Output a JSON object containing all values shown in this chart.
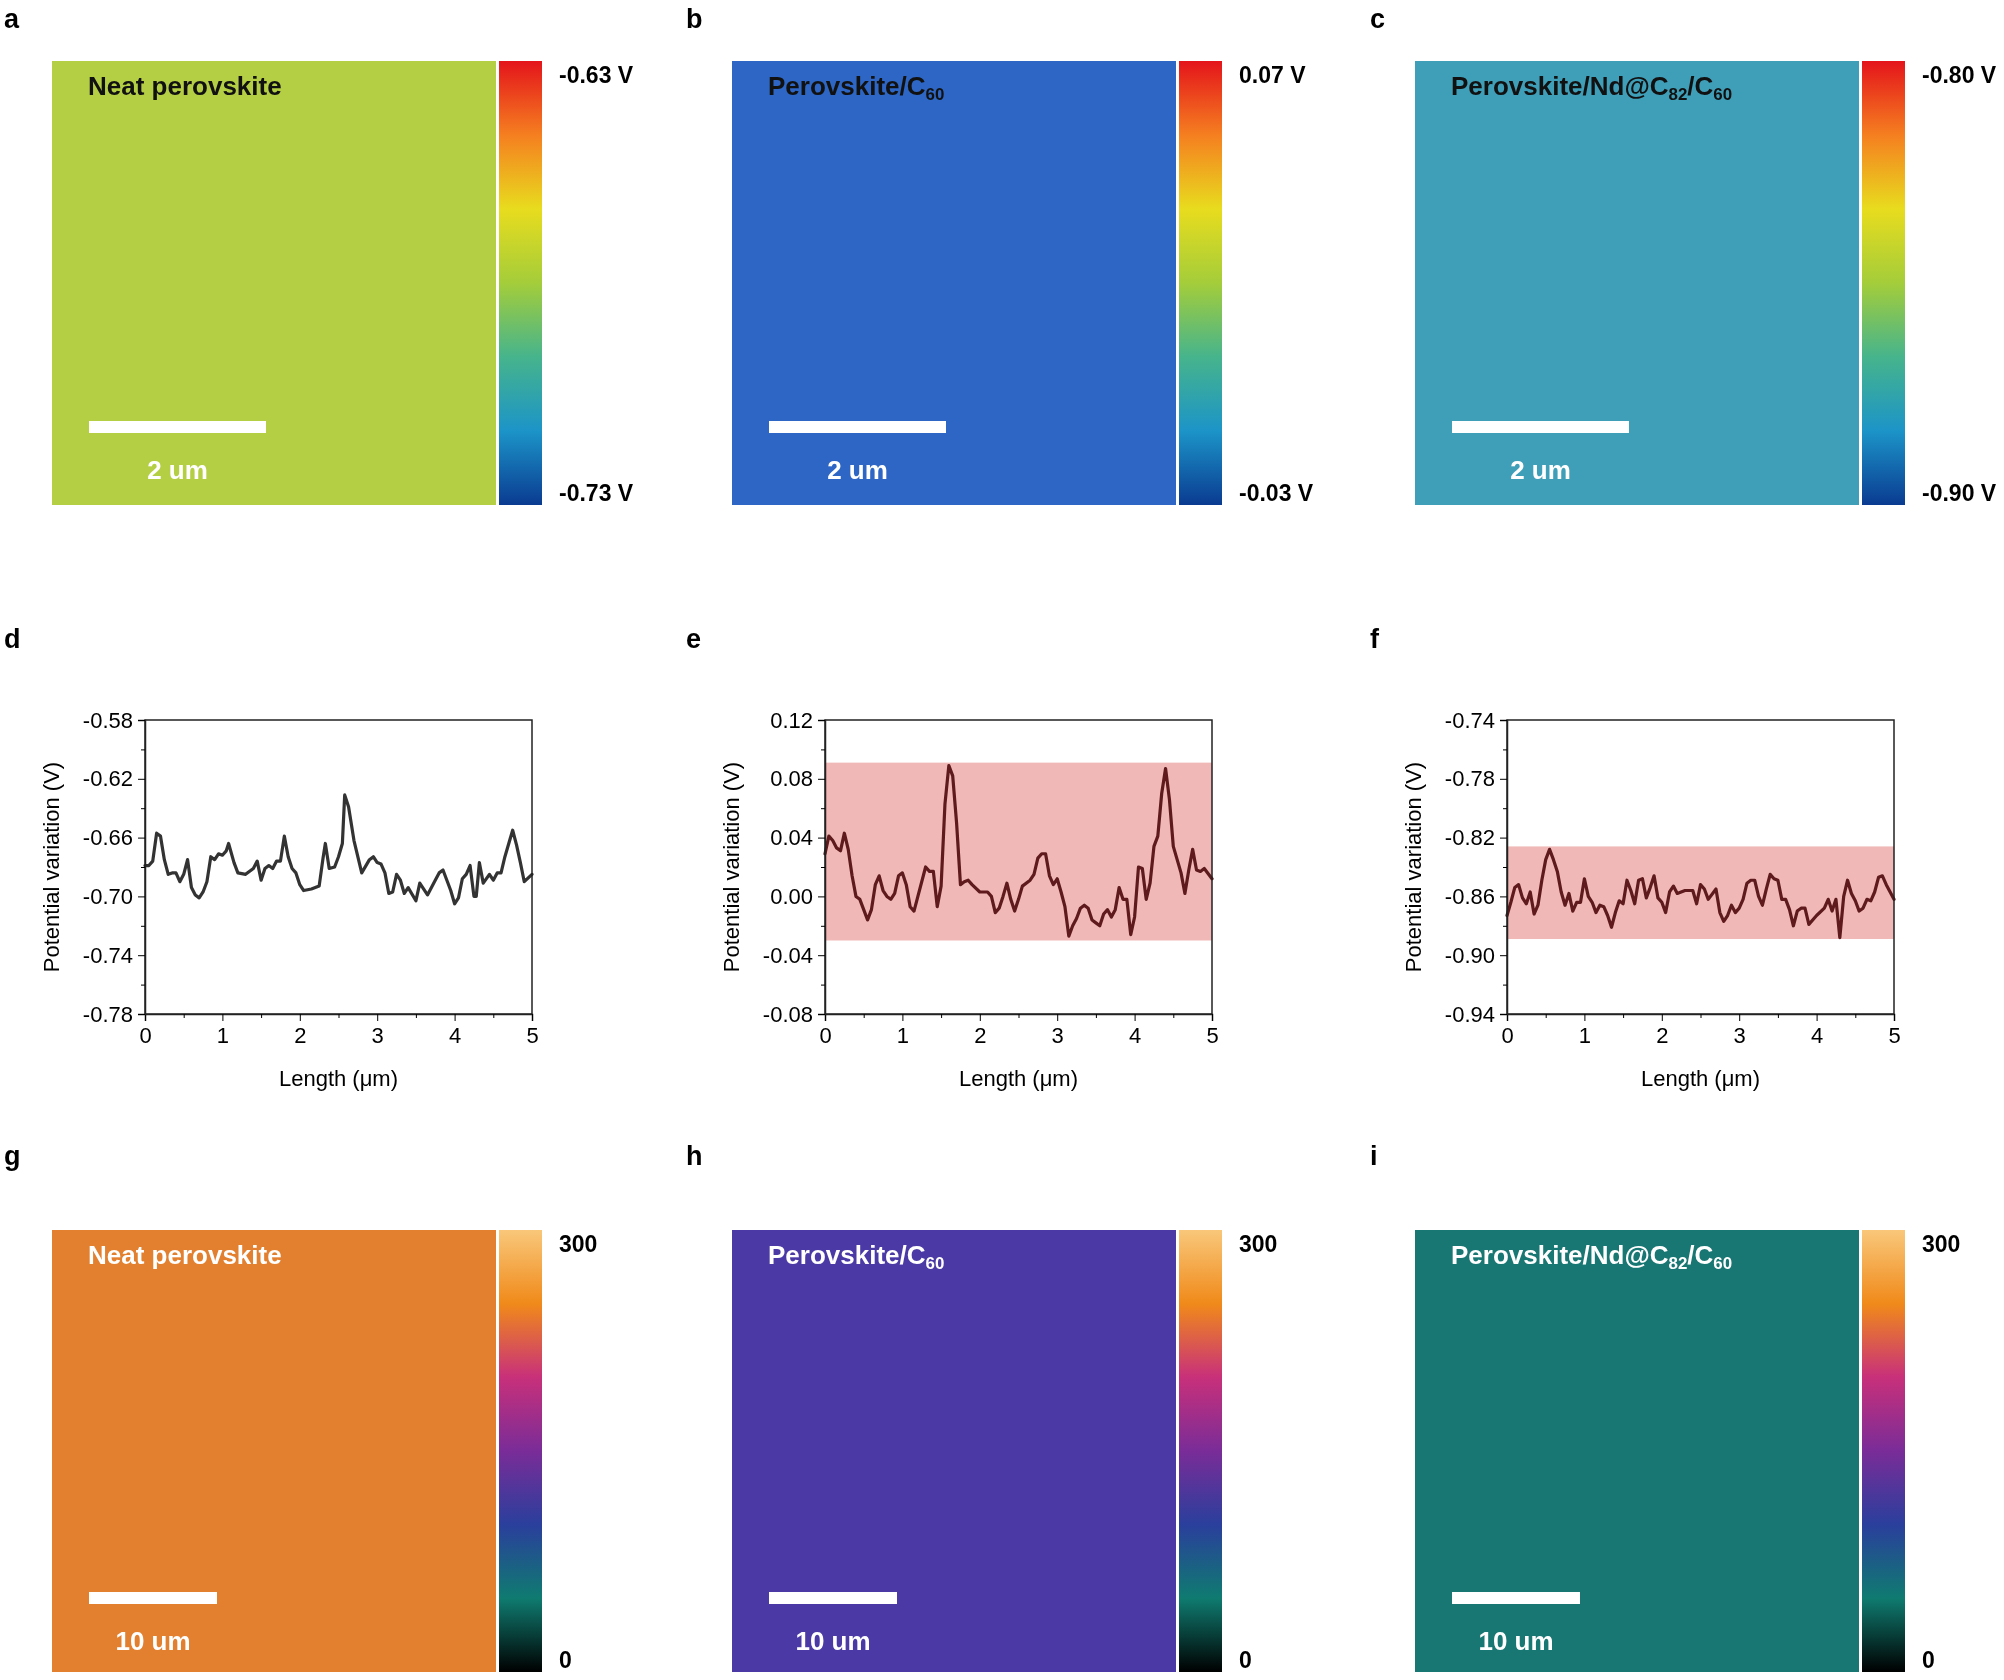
{
  "chart_data": [
    {
      "type": "other",
      "title": "Neat perovskite",
      "annotations": [
        "a",
        "2 um",
        "-0.63 V",
        "-0.73 V"
      ]
    },
    {
      "type": "other",
      "title": "Perovskite/C$_{60}$",
      "annotations": [
        "b",
        "2 um",
        "0.07 V",
        "-0.03 V"
      ]
    },
    {
      "type": "other",
      "title": "Perovskite/Nd@C$_{82}$/C$_{60}$",
      "annotations": [
        "c",
        "2 um",
        "-0.80 V",
        "-0.90 V"
      ]
    },
    {
      "type": "line",
      "xlabel": "Length (μm)",
      "ylabel": "Potential variation (V)",
      "annotations": [
        "d"
      ],
      "xlim": [
        0,
        5
      ],
      "ylim": [
        -0.78,
        -0.58
      ],
      "xticks": [
        0,
        {
          "value": 0.5,
          "label": null
        },
        1,
        {
          "value": 1.5,
          "label": null
        },
        2,
        {
          "value": 2.5,
          "label": null
        },
        3,
        {
          "value": 3.5,
          "label": null
        },
        4,
        {
          "value": 4.5,
          "label": null
        },
        5
      ],
      "yticks": [
        {
          "value": -0.78,
          "label": "-0.78"
        },
        {
          "value": -0.76,
          "label": null
        },
        {
          "value": -0.74,
          "label": "-0.74"
        },
        {
          "value": -0.72,
          "label": null
        },
        {
          "value": -0.7,
          "label": "-0.70"
        },
        {
          "value": -0.68,
          "label": null
        },
        {
          "value": -0.66,
          "label": "-0.66"
        },
        {
          "value": -0.64,
          "label": null
        },
        {
          "value": -0.62,
          "label": "-0.62"
        },
        {
          "value": -0.6,
          "label": null
        },
        {
          "value": -0.58,
          "label": "-0.58"
        }
      ],
      "x": [
        0,
        0.05,
        0.1,
        0.15,
        0.2,
        0.25,
        0.3,
        0.35,
        0.4,
        0.45,
        0.5,
        0.55,
        0.6,
        0.65,
        0.7,
        0.75,
        0.8,
        0.85,
        0.9,
        0.95,
        1.0,
        1.05,
        1.08,
        1.15,
        1.2,
        1.3,
        1.4,
        1.45,
        1.5,
        1.55,
        1.6,
        1.65,
        1.7,
        1.75,
        1.8,
        1.85,
        1.9,
        1.95,
        2.0,
        2.05,
        2.15,
        2.25,
        2.3,
        2.33,
        2.38,
        2.45,
        2.5,
        2.55,
        2.58,
        2.63,
        2.7,
        2.8,
        2.9,
        2.95,
        3.0,
        3.05,
        3.1,
        3.15,
        3.2,
        3.25,
        3.3,
        3.35,
        3.4,
        3.5,
        3.55,
        3.65,
        3.75,
        3.8,
        3.85,
        3.9,
        3.95,
        4.0,
        4.05,
        4.1,
        4.15,
        4.2,
        4.25,
        4.28,
        4.32,
        4.37,
        4.45,
        4.5,
        4.55,
        4.6,
        4.65,
        4.7,
        4.75,
        4.8,
        4.85,
        4.9,
        5.0
      ],
      "series": [
        {
          "color": "#333333",
          "values": [
            -0.679,
            -0.679,
            -0.676,
            -0.657,
            -0.659,
            -0.675,
            -0.685,
            -0.684,
            -0.684,
            -0.69,
            -0.685,
            -0.675,
            -0.694,
            -0.699,
            -0.701,
            -0.697,
            -0.69,
            -0.673,
            -0.675,
            -0.671,
            -0.672,
            -0.669,
            -0.664,
            -0.677,
            -0.684,
            -0.685,
            -0.681,
            -0.676,
            -0.689,
            -0.681,
            -0.679,
            -0.681,
            -0.676,
            -0.676,
            -0.659,
            -0.673,
            -0.681,
            -0.684,
            -0.692,
            -0.696,
            -0.695,
            -0.693,
            -0.674,
            -0.664,
            -0.681,
            -0.68,
            -0.673,
            -0.664,
            -0.631,
            -0.639,
            -0.662,
            -0.684,
            -0.675,
            -0.673,
            -0.677,
            -0.678,
            -0.684,
            -0.698,
            -0.697,
            -0.685,
            -0.689,
            -0.698,
            -0.694,
            -0.703,
            -0.691,
            -0.699,
            -0.689,
            -0.684,
            -0.682,
            -0.689,
            -0.696,
            -0.705,
            -0.701,
            -0.688,
            -0.685,
            -0.679,
            -0.7,
            -0.7,
            -0.677,
            -0.691,
            -0.685,
            -0.689,
            -0.684,
            -0.684,
            -0.673,
            -0.664,
            -0.655,
            -0.665,
            -0.677,
            -0.69,
            -0.685
          ]
        }
      ]
    },
    {
      "type": "line",
      "xlabel": "Length (μm)",
      "ylabel": "Potential variation (V)",
      "annotations": [
        "e"
      ],
      "xlim": [
        0,
        5
      ],
      "ylim": [
        -0.08,
        0.12
      ],
      "xticks": [
        0,
        {
          "value": 0.5,
          "label": null
        },
        1,
        {
          "value": 1.5,
          "label": null
        },
        2,
        {
          "value": 2.5,
          "label": null
        },
        3,
        {
          "value": 3.5,
          "label": null
        },
        4,
        {
          "value": 4.5,
          "label": null
        },
        5
      ],
      "yticks": [
        {
          "value": -0.08,
          "label": "-0.08"
        },
        {
          "value": -0.06,
          "label": null
        },
        {
          "value": -0.04,
          "label": "-0.04"
        },
        {
          "value": -0.02,
          "label": null
        },
        {
          "value": 0,
          "label": "0.00"
        },
        {
          "value": 0.02,
          "label": null
        },
        {
          "value": 0.04,
          "label": "0.04"
        },
        {
          "value": 0.06,
          "label": null
        },
        {
          "value": 0.08,
          "label": "0.08"
        },
        {
          "value": 0.1,
          "label": null
        },
        {
          "value": 0.12,
          "label": "0.12"
        }
      ],
      "bands": [
        {
          "axis": "y",
          "from": -0.03,
          "to": 0.091,
          "color": "#f0b9b7"
        }
      ],
      "x": [
        0,
        0.05,
        0.1,
        0.15,
        0.2,
        0.25,
        0.3,
        0.35,
        0.4,
        0.45,
        0.5,
        0.55,
        0.6,
        0.65,
        0.7,
        0.75,
        0.8,
        0.85,
        0.9,
        0.95,
        1.0,
        1.05,
        1.1,
        1.15,
        1.2,
        1.3,
        1.35,
        1.4,
        1.45,
        1.5,
        1.55,
        1.6,
        1.65,
        1.7,
        1.75,
        1.8,
        1.85,
        1.9,
        2.0,
        2.1,
        2.15,
        2.2,
        2.25,
        2.3,
        2.35,
        2.4,
        2.45,
        2.5,
        2.55,
        2.65,
        2.7,
        2.75,
        2.8,
        2.85,
        2.9,
        2.95,
        3.0,
        3.05,
        3.1,
        3.15,
        3.2,
        3.25,
        3.3,
        3.35,
        3.4,
        3.45,
        3.5,
        3.55,
        3.6,
        3.65,
        3.7,
        3.75,
        3.8,
        3.85,
        3.9,
        3.95,
        4.0,
        4.05,
        4.1,
        4.15,
        4.2,
        4.25,
        4.3,
        4.35,
        4.4,
        4.45,
        4.5,
        4.55,
        4.6,
        4.65,
        4.7,
        4.75,
        4.8,
        4.85,
        4.9,
        5.0
      ],
      "series": [
        {
          "color": "#5e1a1c",
          "values": [
            0.029,
            0.041,
            0.038,
            0.033,
            0.031,
            0.043,
            0.032,
            0.014,
            0.0,
            -0.002,
            -0.009,
            -0.016,
            -0.009,
            0.008,
            0.014,
            0.004,
            0.0,
            -0.002,
            0.002,
            0.014,
            0.016,
            0.008,
            -0.007,
            -0.01,
            0.0,
            0.02,
            0.017,
            0.017,
            -0.007,
            0.007,
            0.063,
            0.089,
            0.082,
            0.05,
            0.008,
            0.01,
            0.011,
            0.008,
            0.003,
            0.003,
            0.0,
            -0.011,
            -0.008,
            0.0,
            0.009,
            -0.002,
            -0.01,
            -0.002,
            0.007,
            0.011,
            0.015,
            0.026,
            0.029,
            0.029,
            0.014,
            0.008,
            0.012,
            0.003,
            -0.007,
            -0.027,
            -0.02,
            -0.015,
            -0.008,
            -0.006,
            -0.008,
            -0.016,
            -0.018,
            -0.02,
            -0.012,
            -0.009,
            -0.014,
            -0.009,
            0.006,
            -0.002,
            -0.002,
            -0.026,
            -0.014,
            0.02,
            0.019,
            -0.002,
            0.009,
            0.034,
            0.041,
            0.07,
            0.087,
            0.066,
            0.034,
            0.025,
            0.016,
            0.002,
            0.018,
            0.032,
            0.018,
            0.017,
            0.019,
            0.012
          ]
        }
      ]
    },
    {
      "type": "line",
      "xlabel": "Length (μm)",
      "ylabel": "Potential variation (V)",
      "annotations": [
        "f"
      ],
      "xlim": [
        0,
        5
      ],
      "ylim": [
        -0.94,
        -0.74
      ],
      "xticks": [
        0,
        {
          "value": 0.5,
          "label": null
        },
        1,
        {
          "value": 1.5,
          "label": null
        },
        2,
        {
          "value": 2.5,
          "label": null
        },
        3,
        {
          "value": 3.5,
          "label": null
        },
        4,
        {
          "value": 4.5,
          "label": null
        },
        5
      ],
      "yticks": [
        {
          "value": -0.94,
          "label": "-0.94"
        },
        {
          "value": -0.92,
          "label": null
        },
        {
          "value": -0.9,
          "label": "-0.90"
        },
        {
          "value": -0.88,
          "label": null
        },
        {
          "value": -0.86,
          "label": "-0.86"
        },
        {
          "value": -0.84,
          "label": null
        },
        {
          "value": -0.82,
          "label": "-0.82"
        },
        {
          "value": -0.8,
          "label": null
        },
        {
          "value": -0.78,
          "label": "-0.78"
        },
        {
          "value": -0.76,
          "label": null
        },
        {
          "value": -0.74,
          "label": "-0.74"
        }
      ],
      "bands": [
        {
          "axis": "y",
          "from": -0.889,
          "to": -0.826,
          "color": "#f0b9b7"
        }
      ],
      "x": [
        0,
        0.05,
        0.1,
        0.15,
        0.2,
        0.25,
        0.3,
        0.35,
        0.4,
        0.45,
        0.5,
        0.55,
        0.6,
        0.65,
        0.7,
        0.75,
        0.8,
        0.85,
        0.9,
        0.95,
        1.0,
        1.05,
        1.1,
        1.15,
        1.2,
        1.25,
        1.3,
        1.35,
        1.4,
        1.45,
        1.5,
        1.55,
        1.6,
        1.65,
        1.7,
        1.75,
        1.8,
        1.85,
        1.9,
        1.95,
        2.0,
        2.05,
        2.1,
        2.15,
        2.2,
        2.3,
        2.4,
        2.45,
        2.5,
        2.55,
        2.6,
        2.7,
        2.75,
        2.8,
        2.85,
        2.9,
        2.95,
        3.0,
        3.05,
        3.1,
        3.15,
        3.2,
        3.25,
        3.3,
        3.35,
        3.4,
        3.45,
        3.5,
        3.55,
        3.6,
        3.65,
        3.7,
        3.75,
        3.8,
        3.85,
        3.9,
        4.0,
        4.1,
        4.15,
        4.2,
        4.25,
        4.3,
        4.35,
        4.4,
        4.45,
        4.5,
        4.55,
        4.6,
        4.65,
        4.7,
        4.75,
        4.8,
        4.85,
        4.9,
        4.95,
        5.0
      ],
      "series": [
        {
          "color": "#5e1a1c",
          "values": [
            -0.873,
            -0.864,
            -0.854,
            -0.852,
            -0.861,
            -0.865,
            -0.857,
            -0.872,
            -0.866,
            -0.849,
            -0.835,
            -0.828,
            -0.835,
            -0.843,
            -0.857,
            -0.866,
            -0.858,
            -0.87,
            -0.864,
            -0.864,
            -0.848,
            -0.86,
            -0.864,
            -0.871,
            -0.866,
            -0.867,
            -0.873,
            -0.881,
            -0.871,
            -0.863,
            -0.865,
            -0.849,
            -0.856,
            -0.865,
            -0.849,
            -0.848,
            -0.861,
            -0.854,
            -0.846,
            -0.861,
            -0.864,
            -0.871,
            -0.857,
            -0.853,
            -0.858,
            -0.856,
            -0.856,
            -0.865,
            -0.852,
            -0.855,
            -0.862,
            -0.855,
            -0.871,
            -0.877,
            -0.873,
            -0.866,
            -0.871,
            -0.868,
            -0.862,
            -0.851,
            -0.849,
            -0.849,
            -0.86,
            -0.866,
            -0.855,
            -0.845,
            -0.848,
            -0.849,
            -0.862,
            -0.862,
            -0.869,
            -0.88,
            -0.87,
            -0.868,
            -0.868,
            -0.879,
            -0.873,
            -0.868,
            -0.862,
            -0.87,
            -0.862,
            -0.888,
            -0.86,
            -0.849,
            -0.858,
            -0.863,
            -0.87,
            -0.868,
            -0.862,
            -0.863,
            -0.857,
            -0.847,
            -0.846,
            -0.852,
            -0.857,
            -0.862
          ]
        }
      ]
    },
    {
      "type": "other",
      "title": "Neat perovskite",
      "annotations": [
        "g",
        "10 um",
        "300",
        "0"
      ]
    },
    {
      "type": "other",
      "title": "Perovskite/C$_{60}$",
      "annotations": [
        "h",
        "10 um",
        "300",
        "0"
      ]
    },
    {
      "type": "other",
      "title": "Perovskite/Nd@C$_{82}$/C$_{60}$",
      "annotations": [
        "i",
        "10 um",
        "300",
        "0"
      ]
    }
  ]
}
